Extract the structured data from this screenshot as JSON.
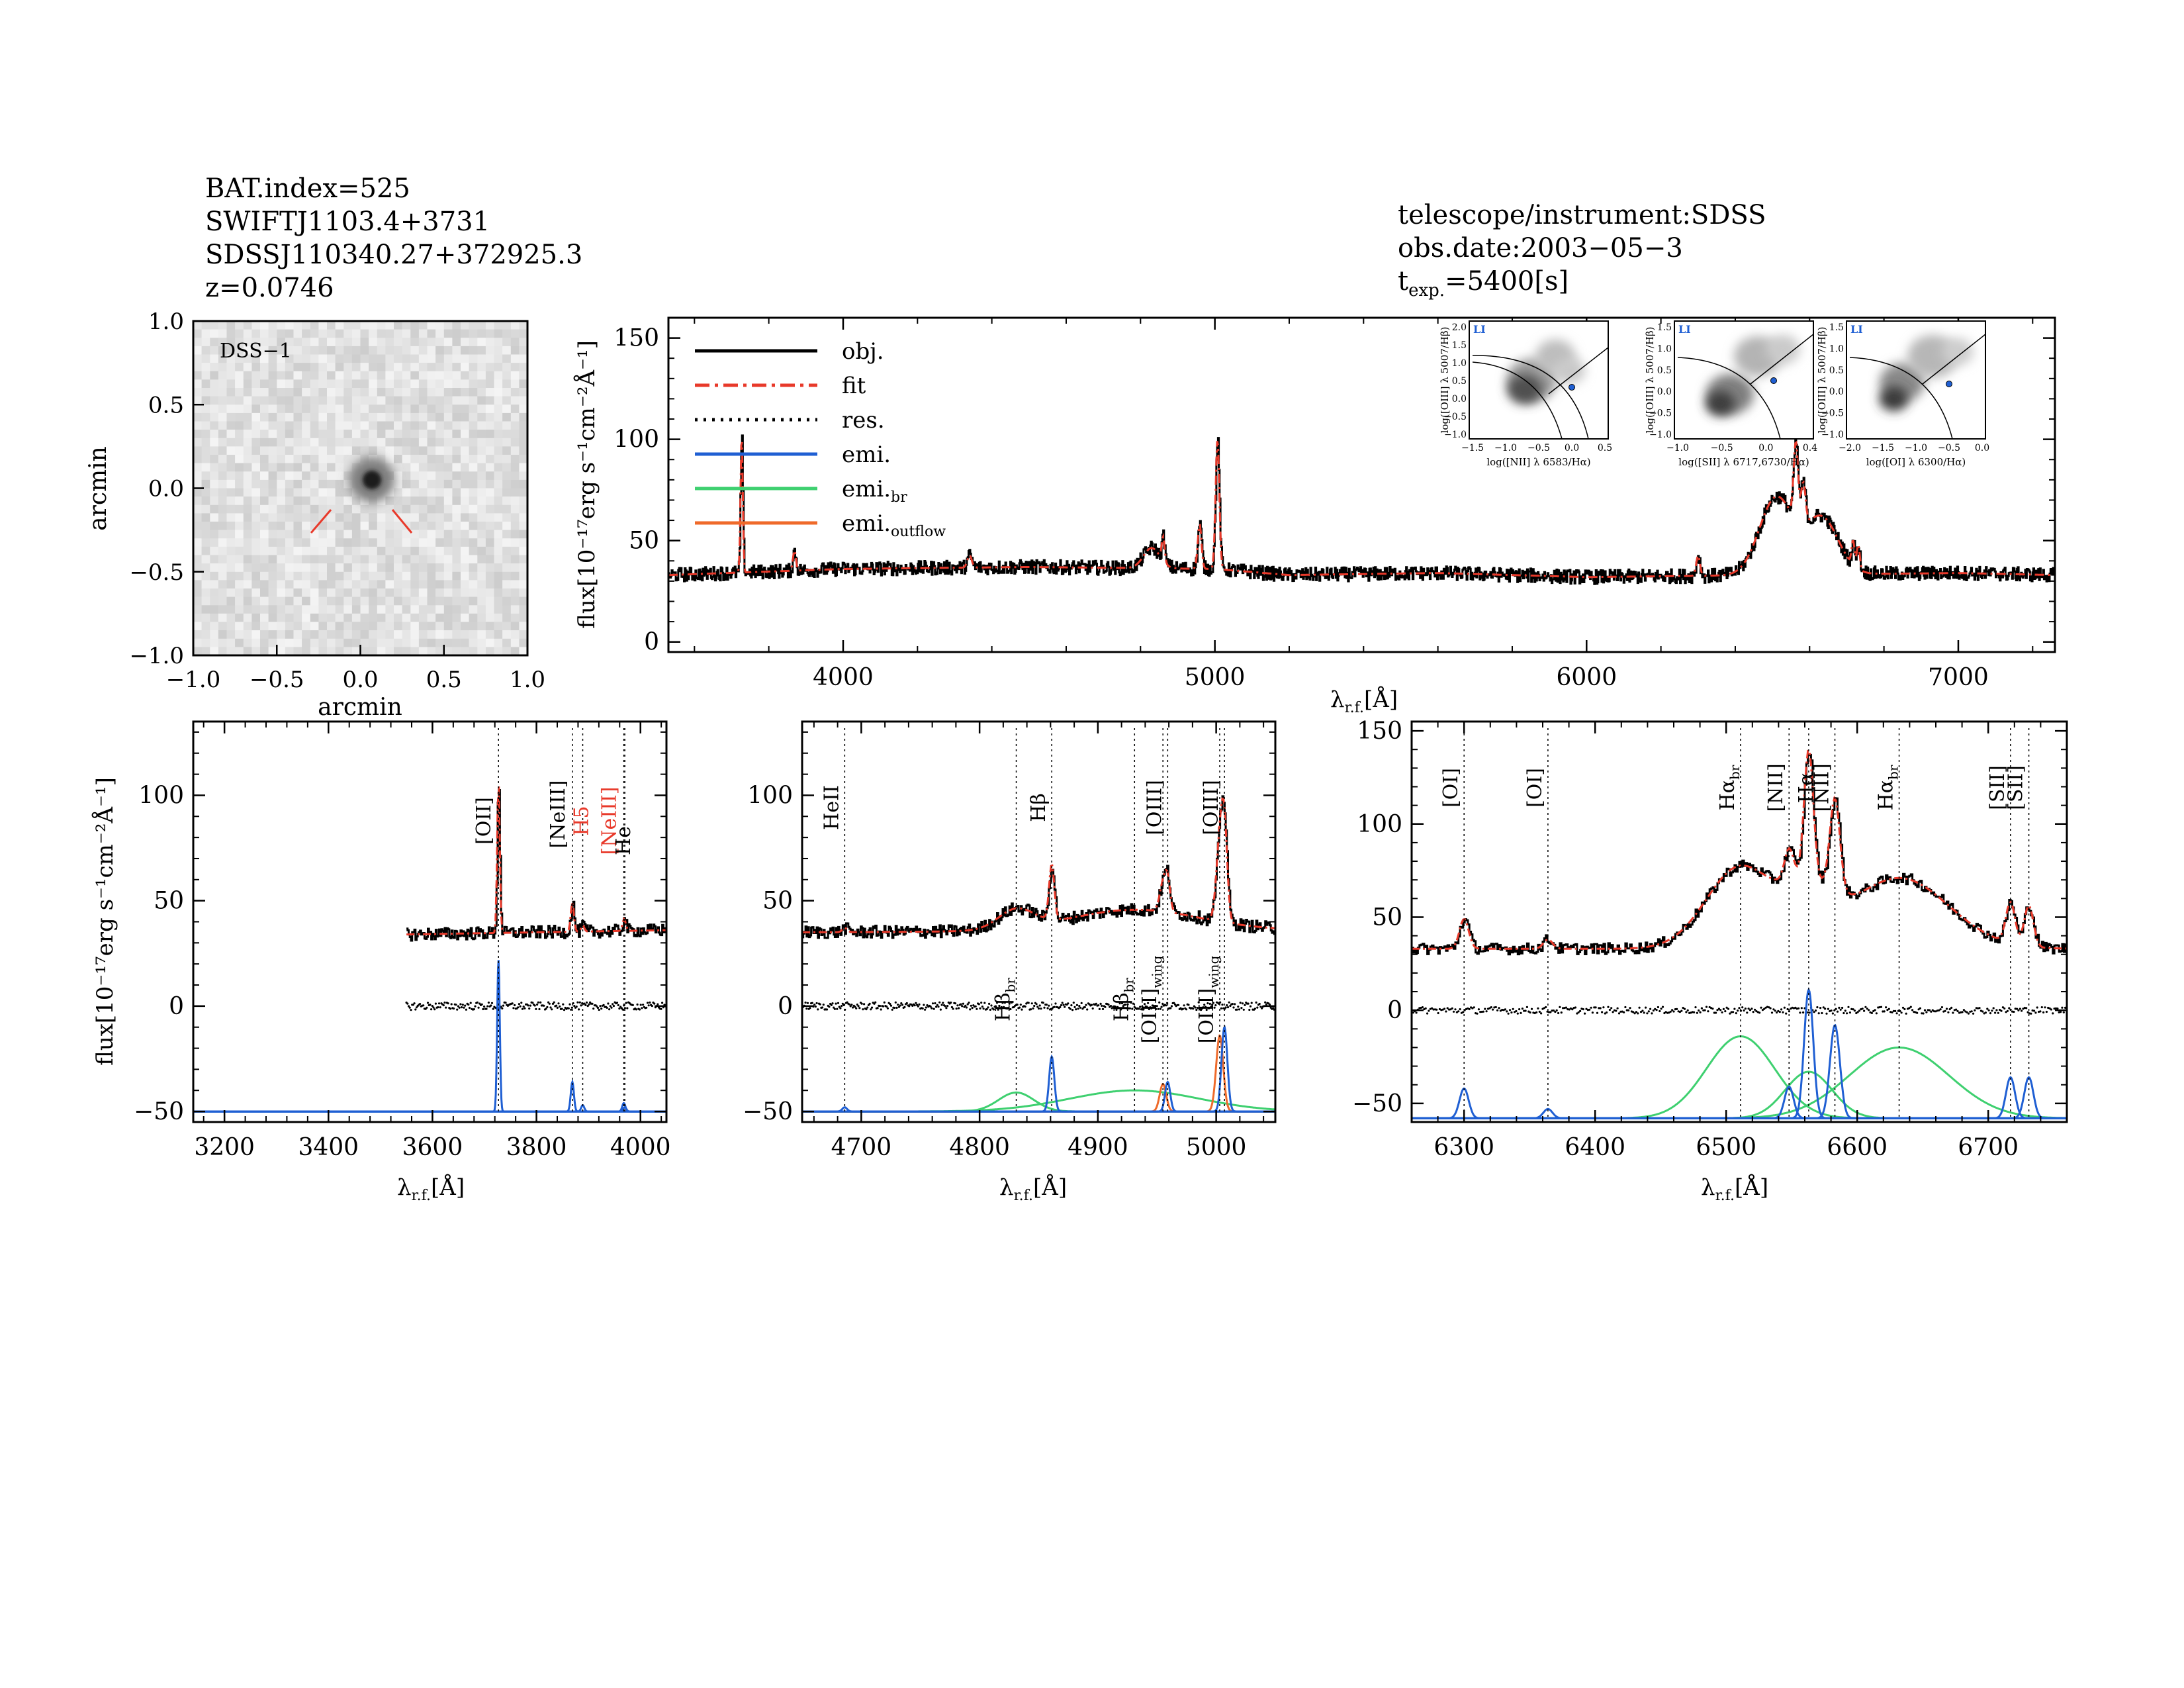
{
  "header_left": {
    "line1": "BAT.index=525",
    "line2": "SWIFTJ1103.4+3731",
    "line3": "SDSSJ110340.27+372925.3",
    "line4": "z=0.0746"
  },
  "header_right": {
    "line1": "telescope/instrument:SDSS",
    "line2": "obs.date:2003−05−3",
    "texp_main": "t",
    "texp_sub": "exp.",
    "texp_value": "=5400[s]"
  },
  "colors": {
    "obj": "#000000",
    "fit": "#e8392a",
    "emi": "#1f5fd3",
    "emi_br": "#3fd070",
    "emi_outflow": "#ef6a2a",
    "red_label": "#e8392a"
  },
  "image_panel": {
    "label": "DSS−1",
    "xlabel": "arcmin",
    "ylabel": "arcmin",
    "xlim": [
      -1.0,
      1.0
    ],
    "ylim": [
      -1.0,
      1.0
    ],
    "ticks": [
      "−1.0",
      "−0.5",
      "0.0",
      "0.5",
      "1.0"
    ]
  },
  "legend": [
    {
      "label": "obj.",
      "style": "solid",
      "color": "#000000"
    },
    {
      "label": "fit",
      "style": "dashdot",
      "color": "#e8392a"
    },
    {
      "label": "res.",
      "style": "dotted",
      "color": "#000000"
    },
    {
      "label": "emi.",
      "style": "solid",
      "color": "#1f5fd3"
    },
    {
      "label": "emi.",
      "sub": "br",
      "style": "solid",
      "color": "#3fd070"
    },
    {
      "label": "emi.",
      "sub": "outflow",
      "style": "solid",
      "color": "#ef6a2a"
    }
  ],
  "axis_labels": {
    "flux": "flux[10⁻¹⁷erg s⁻¹cm⁻²Å⁻¹]",
    "lambda": "λ",
    "lambda_sub": "r.f.",
    "lambda_unit": "[Å]"
  },
  "bpt": [
    {
      "tag": "LI",
      "xlabel": "log([NII] λ 6583/Hα)",
      "ylabel": "log([OIII] λ 5007/Hβ)",
      "xticks": [
        "−1.5",
        "−1.0",
        "−0.5",
        "0.0",
        "0.5"
      ],
      "yticks": [
        "2.0",
        "1.5",
        "1.0",
        "0.5",
        "0.0",
        "−0.5",
        "−1.0"
      ]
    },
    {
      "tag": "LI",
      "xlabel": "log([SII] λ 6717,6730/Hα)",
      "ylabel": "log([OIII] λ 5007/Hβ)",
      "xticks": [
        "−1.0",
        "−0.5",
        "0.0",
        "0.4"
      ],
      "yticks": [
        "1.5",
        "1.0",
        "0.5",
        "0.0",
        "−0.5",
        "−1.0"
      ]
    },
    {
      "tag": "LI",
      "xlabel": "log([OI] λ 6300/Hα)",
      "ylabel": "log([OIII] λ 5007/Hβ)",
      "xticks": [
        "−2.0",
        "−1.5",
        "−1.0",
        "−0.5",
        "0.0"
      ],
      "yticks": [
        "1.5",
        "1.0",
        "0.5",
        "0.0",
        "−0.5",
        "−1.0"
      ]
    }
  ],
  "chart_data": [
    {
      "id": "main",
      "type": "line",
      "title": "",
      "xlabel": "λ r.f. [Å]",
      "ylabel": "flux[10^-17 erg s^-1 cm^-2 Å^-1]",
      "xlim": [
        3530,
        7260
      ],
      "ylim": [
        -5,
        160
      ],
      "xticks": [
        4000,
        5000,
        6000,
        7000
      ],
      "yticks": [
        0,
        50,
        100,
        150
      ],
      "continuum": [
        [
          3530,
          33
        ],
        [
          4000,
          36
        ],
        [
          4500,
          37
        ],
        [
          5000,
          36
        ],
        [
          5200,
          33
        ],
        [
          5600,
          34
        ],
        [
          6000,
          32
        ],
        [
          6500,
          33
        ],
        [
          7000,
          34
        ],
        [
          7260,
          33
        ]
      ],
      "features": [
        {
          "center": 3727,
          "amp": 68,
          "sigma": 3
        },
        {
          "center": 3869,
          "amp": 10,
          "sigma": 4
        },
        {
          "center": 4340,
          "amp": 6,
          "sigma": 6
        },
        {
          "center": 4830,
          "amp": 10,
          "sigma": 22
        },
        {
          "center": 4861,
          "amp": 12,
          "sigma": 4
        },
        {
          "center": 4959,
          "amp": 22,
          "sigma": 5
        },
        {
          "center": 5007,
          "amp": 64,
          "sigma": 5
        },
        {
          "center": 6300,
          "amp": 10,
          "sigma": 5
        },
        {
          "center": 6510,
          "amp": 38,
          "sigma": 45
        },
        {
          "center": 6563,
          "amp": 38,
          "sigma": 6
        },
        {
          "center": 6583,
          "amp": 20,
          "sigma": 6
        },
        {
          "center": 6632,
          "amp": 28,
          "sigma": 45
        },
        {
          "center": 6717,
          "amp": 12,
          "sigma": 4
        },
        {
          "center": 6731,
          "amp": 12,
          "sigma": 4
        }
      ]
    },
    {
      "id": "oii",
      "type": "line",
      "xlim": [
        3140,
        4050
      ],
      "ylim": [
        -55,
        135
      ],
      "xticks": [
        3200,
        3400,
        3600,
        3800,
        4000
      ],
      "yticks": [
        -50,
        0,
        50,
        100
      ],
      "data_start": 3550,
      "continuum": [
        [
          3550,
          34
        ],
        [
          4050,
          36
        ]
      ],
      "lines": [
        {
          "name": "[OII]",
          "wave": 3727,
          "amp": 68,
          "sigma": 2.5,
          "emi_amp": 72
        },
        {
          "name": "[NeIII]",
          "wave": 3869,
          "amp": 12,
          "sigma": 3,
          "emi_amp": 14
        },
        {
          "name": "H5",
          "wave": 3889,
          "amp": 3,
          "sigma": 3,
          "emi_amp": 3
        },
        {
          "name": "[NeIII]",
          "wave": 3968,
          "amp": 4,
          "sigma": 3,
          "emi_amp": 4
        },
        {
          "name": "He",
          "wave": 3970,
          "amp": 2,
          "sigma": 3,
          "emi_amp": 2
        }
      ],
      "residual_offset": 0,
      "emi_baseline": -50,
      "labels": [
        {
          "text": "[OII]",
          "wave": 3727,
          "color": "#000000"
        },
        {
          "text": "[NeIII]",
          "wave": 3869,
          "color": "#000000"
        },
        {
          "text": "H5",
          "wave": 3889,
          "color": "#e8392a"
        },
        {
          "text": "[NeIII]",
          "wave": 3968,
          "color": "#e8392a"
        },
        {
          "text": "He",
          "wave": 3970,
          "color": "#000000"
        }
      ]
    },
    {
      "id": "hb",
      "type": "line",
      "xlim": [
        4650,
        5050
      ],
      "ylim": [
        -55,
        135
      ],
      "xticks": [
        4700,
        4800,
        4900,
        5000
      ],
      "yticks": [
        -50,
        0,
        50,
        100
      ],
      "continuum": [
        [
          4650,
          35
        ],
        [
          5050,
          36
        ]
      ],
      "narrow": [
        {
          "name": "HeII",
          "wave": 4686,
          "emi_amp": 2,
          "sigma": 2
        },
        {
          "name": "Hβ",
          "wave": 4861,
          "emi_amp": 26,
          "sigma": 2.2
        },
        {
          "name": "[OIII]",
          "wave": 4959,
          "emi_amp": 14,
          "sigma": 2.2
        },
        {
          "name": "[OIII]",
          "wave": 5007,
          "emi_amp": 40,
          "sigma": 2.5
        }
      ],
      "broad": [
        {
          "name": "Hβ br",
          "wave": 4831,
          "emi_amp": 9,
          "sigma": 15
        },
        {
          "name": "Hβ br",
          "wave": 4931,
          "emi_amp": 10,
          "sigma": 55
        }
      ],
      "outflow": [
        {
          "name": "[OIII] wing",
          "wave": 4955,
          "emi_amp": 13,
          "sigma": 2.8
        },
        {
          "name": "[OIII] wing",
          "wave": 5003,
          "emi_amp": 36,
          "sigma": 3
        }
      ],
      "emi_baseline": -50,
      "labels": [
        {
          "text": "HeII",
          "wave": 4686,
          "pos": "top"
        },
        {
          "text": "Hβ",
          "wave": 4861,
          "pos": "top"
        },
        {
          "text": "[OIII]",
          "wave": 4959,
          "pos": "top"
        },
        {
          "text": "[OIII]",
          "wave": 5007,
          "pos": "top"
        },
        {
          "text": "Hβ",
          "sub": "br",
          "wave": 4831,
          "pos": "mid"
        },
        {
          "text": "Hβ",
          "sub": "br",
          "wave": 4931,
          "pos": "mid"
        },
        {
          "text": "[OIII]",
          "sub": "wing",
          "wave": 4955,
          "pos": "mid"
        },
        {
          "text": "[OIII]",
          "sub": "wing",
          "wave": 5003,
          "pos": "mid"
        }
      ]
    },
    {
      "id": "ha",
      "type": "line",
      "xlim": [
        6260,
        6760
      ],
      "ylim": [
        -60,
        155
      ],
      "xticks": [
        6300,
        6400,
        6500,
        6600,
        6700
      ],
      "yticks": [
        -50,
        0,
        50,
        100,
        150
      ],
      "continuum": [
        [
          6260,
          33
        ],
        [
          6760,
          33
        ]
      ],
      "narrow": [
        {
          "name": "[OI]",
          "wave": 6300,
          "emi_amp": 16,
          "sigma": 3.5
        },
        {
          "name": "[OI]",
          "wave": 6364,
          "emi_amp": 5,
          "sigma": 3.5
        },
        {
          "name": "[NII]",
          "wave": 6548,
          "emi_amp": 17,
          "sigma": 3.5
        },
        {
          "name": "Hα",
          "wave": 6563,
          "emi_amp": 69,
          "sigma": 3.5
        },
        {
          "name": "[NII]",
          "wave": 6583,
          "emi_amp": 50,
          "sigma": 3.8
        },
        {
          "name": "[SII]",
          "wave": 6717,
          "emi_amp": 22,
          "sigma": 3.5
        },
        {
          "name": "[SII]",
          "wave": 6731,
          "emi_amp": 22,
          "sigma": 3.5
        }
      ],
      "broad": [
        {
          "name": "Hα br",
          "wave": 6511,
          "emi_amp": 44,
          "sigma": 26
        },
        {
          "name": "Hα br",
          "wave": 6563,
          "emi_amp": 25,
          "sigma": 18
        },
        {
          "name": "Hα br",
          "wave": 6632,
          "emi_amp": 38,
          "sigma": 38
        }
      ],
      "emi_baseline": -58,
      "labels": [
        {
          "text": "[OI]",
          "wave": 6300
        },
        {
          "text": "[OI]",
          "wave": 6364
        },
        {
          "text": "Hα",
          "sub": "br",
          "wave": 6511
        },
        {
          "text": "[NII]",
          "wave": 6548
        },
        {
          "text": "Hα",
          "wave": 6563
        },
        {
          "text": "[NII]",
          "wave": 6583
        },
        {
          "text": "Hα",
          "sub": "br",
          "wave": 6632
        },
        {
          "text": "[SII]",
          "wave": 6717
        },
        {
          "text": "[SII]",
          "wave": 6731
        }
      ]
    }
  ]
}
